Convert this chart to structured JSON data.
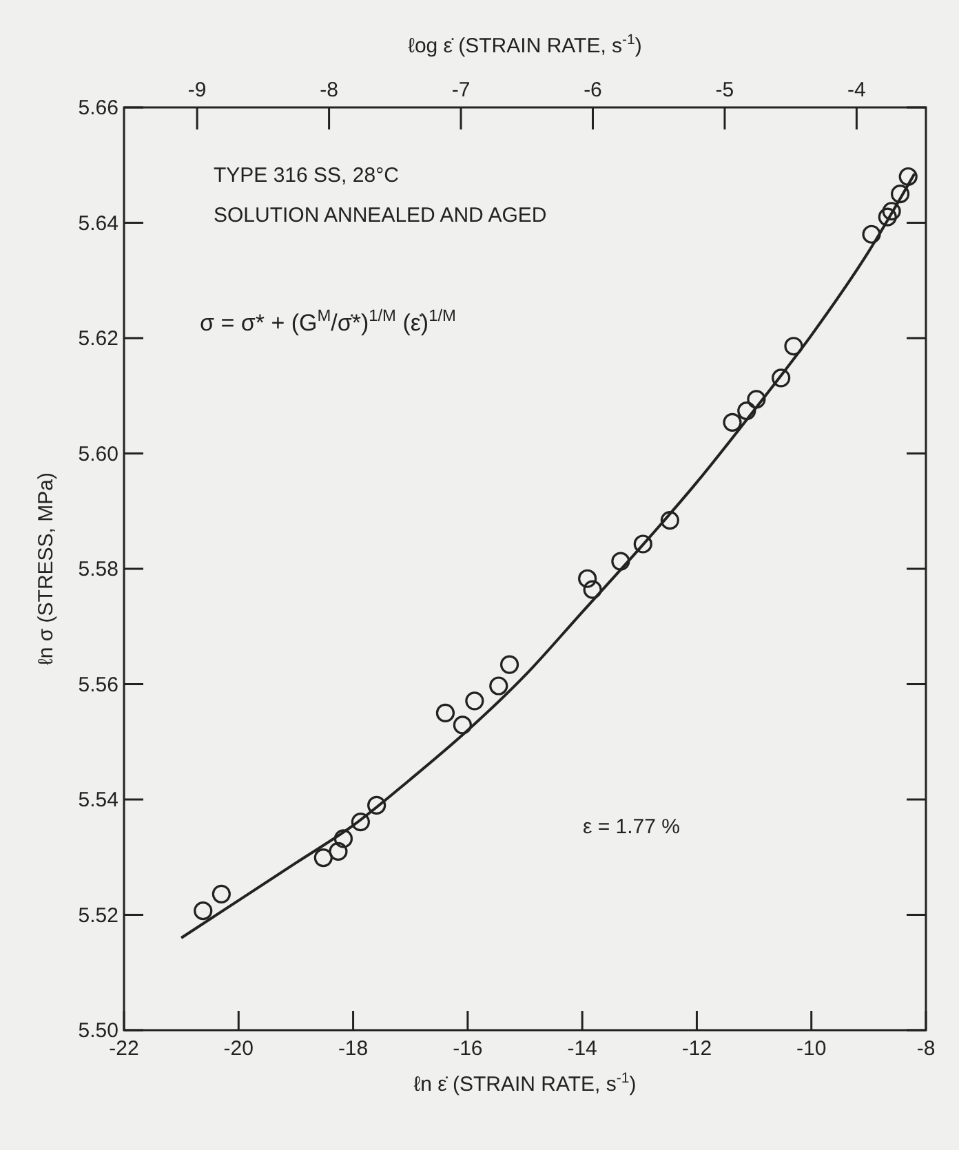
{
  "chart_data": {
    "type": "scatter",
    "xlabel": "ℓn ε̇ (STRAIN RATE, s$^{-1}$)",
    "ylabel": "ℓn σ (STRESS, MPa)",
    "x2label": "ℓog ε̇ (STRAIN RATE, s$^{-1}$)",
    "xlim": [
      -22,
      -8
    ],
    "xticks": [
      -22,
      -20,
      -18,
      -16,
      -14,
      -12,
      -10,
      -8
    ],
    "x2lim": [
      -9.5544,
      -3.4744
    ],
    "x2ticks": [
      -9,
      -8,
      -7,
      -6,
      -5,
      -4
    ],
    "ylim": [
      5.5,
      5.66
    ],
    "yticks": [
      {
        "value": 5.5,
        "label": "5.50"
      },
      5.52,
      5.54,
      5.56,
      5.58,
      {
        "value": 5.6,
        "label": "5.60"
      },
      5.62,
      5.64,
      5.66
    ],
    "grid": false,
    "annotations": [
      "TYPE 316 SS, 28°C",
      "SOLUTION ANNEALED AND AGED",
      "σ = σ* + (G$^{M}$/σ̇*)$^{1/M}$ (ε̇)$^{1/M}$",
      "ε = 1.77 %"
    ],
    "series": [
      {
        "color": "#222222",
        "marker": "circle",
        "x": [
          -20.62,
          -20.3,
          -18.52,
          -18.26,
          -18.17,
          -17.87,
          -17.59,
          -16.39,
          -16.09,
          -15.88,
          -15.46,
          -15.27,
          -13.91,
          -13.82,
          -13.33,
          -12.94,
          -12.47,
          -11.38,
          -11.13,
          -10.96,
          -10.53,
          -10.31,
          -8.95,
          -8.67,
          -8.6,
          -8.45,
          -8.31
        ],
        "values": [
          5.5207,
          5.5236,
          5.5299,
          5.531,
          5.5332,
          5.5361,
          5.539,
          5.555,
          5.5529,
          5.5571,
          5.5597,
          5.5634,
          5.5783,
          5.5764,
          5.5813,
          5.5843,
          5.5884,
          5.6054,
          5.6074,
          5.6094,
          5.6131,
          5.6186,
          5.638,
          5.641,
          5.642,
          5.645,
          5.648
        ]
      },
      {
        "type": "line",
        "color": "#222222",
        "marker": "none",
        "line_style": "solid",
        "x": [
          -21,
          -20,
          -19,
          -18,
          -17,
          -16,
          -15,
          -14,
          -13,
          -12,
          -11,
          -10,
          -9,
          -8.2
        ],
        "values": [
          5.516,
          5.5225,
          5.529,
          5.5355,
          5.5435,
          5.552,
          5.5615,
          5.5725,
          5.5835,
          5.595,
          5.6075,
          5.6205,
          5.635,
          5.6485
        ]
      }
    ]
  }
}
